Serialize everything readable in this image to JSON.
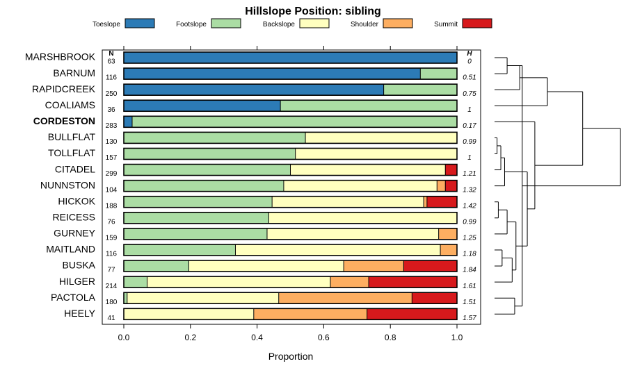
{
  "chart_data": {
    "type": "bar",
    "stacked": true,
    "orientation": "horizontal",
    "title": "Hillslope Position: sibling",
    "xlabel": "Proportion",
    "ylabel": "",
    "xlim": [
      0,
      1
    ],
    "xticks": [
      "0.0",
      "0.2",
      "0.4",
      "0.6",
      "0.8",
      "1.0"
    ],
    "xtick_values": [
      0,
      0.2,
      0.4,
      0.6,
      0.8,
      1.0
    ],
    "n_header": "N",
    "h_header": "H",
    "legend": [
      {
        "name": "Toeslope",
        "color": "#2c7bb6"
      },
      {
        "name": "Footslope",
        "color": "#abdda4"
      },
      {
        "name": "Backslope",
        "color": "#ffffbf"
      },
      {
        "name": "Shoulder",
        "color": "#fdae61"
      },
      {
        "name": "Summit",
        "color": "#d7191c"
      }
    ],
    "categories": [
      "MARSHBROOK",
      "BARNUM",
      "RAPIDCREEK",
      "COALIAMS",
      "CORDESTON",
      "BULLFLAT",
      "TOLLFLAT",
      "CITADEL",
      "NUNNSTON",
      "HICKOK",
      "REICESS",
      "GURNEY",
      "MAITLAND",
      "BUSKA",
      "HILGER",
      "PACTOLA",
      "HEELY"
    ],
    "highlighted": "CORDESTON",
    "n": [
      "63",
      "116",
      "250",
      "36",
      "283",
      "130",
      "157",
      "299",
      "104",
      "188",
      "76",
      "159",
      "116",
      "77",
      "214",
      "180",
      "41"
    ],
    "h": [
      "0",
      "0.51",
      "0.75",
      "1",
      "0.17",
      "0.99",
      "1",
      "1.21",
      "1.32",
      "1.42",
      "0.99",
      "1.25",
      "1.18",
      "1.84",
      "1.61",
      "1.51",
      "1.57"
    ],
    "series": [
      {
        "name": "Toeslope",
        "values": [
          1.0,
          0.89,
          0.78,
          0.47,
          0.025,
          0,
          0,
          0,
          0,
          0,
          0,
          0,
          0,
          0,
          0,
          0,
          0
        ]
      },
      {
        "name": "Footslope",
        "values": [
          0,
          0.11,
          0.22,
          0.53,
          0.975,
          0.545,
          0.515,
          0.5,
          0.48,
          0.445,
          0.435,
          0.43,
          0.335,
          0.195,
          0.07,
          0.01,
          0
        ]
      },
      {
        "name": "Backslope",
        "values": [
          0,
          0,
          0,
          0,
          0,
          0.455,
          0.485,
          0.465,
          0.46,
          0.455,
          0.565,
          0.515,
          0.615,
          0.465,
          0.55,
          0.455,
          0.39
        ]
      },
      {
        "name": "Shoulder",
        "values": [
          0,
          0,
          0,
          0,
          0,
          0,
          0,
          0,
          0.025,
          0.01,
          0,
          0.055,
          0.05,
          0.18,
          0.115,
          0.4,
          0.34
        ]
      },
      {
        "name": "Summit",
        "values": [
          0,
          0,
          0,
          0,
          0,
          0,
          0,
          0.035,
          0.035,
          0.09,
          0,
          0,
          0,
          0.16,
          0.265,
          0.135,
          0.27
        ]
      }
    ],
    "dendrogram": {
      "type": "hierarchical-clustering",
      "merges": [
        [
          0,
          1
        ],
        [
          17,
          2
        ],
        [
          18,
          3
        ],
        [
          5,
          6
        ],
        [
          20,
          7
        ],
        [
          21,
          8
        ],
        [
          9,
          10
        ],
        [
          23,
          11
        ],
        [
          12,
          13
        ],
        [
          25,
          14
        ],
        [
          24,
          26
        ],
        [
          22,
          27
        ],
        [
          28,
          4
        ],
        [
          15,
          16
        ],
        [
          30,
          17
        ],
        [
          19,
          29
        ],
        [
          32,
          31
        ]
      ],
      "heights": [
        0.1,
        0.2,
        0.42,
        0.02,
        0.05,
        0.08,
        0.03,
        0.1,
        0.06,
        0.14,
        0.17,
        0.26,
        0.32,
        0.16,
        0.22,
        0.7,
        1.0
      ]
    }
  }
}
